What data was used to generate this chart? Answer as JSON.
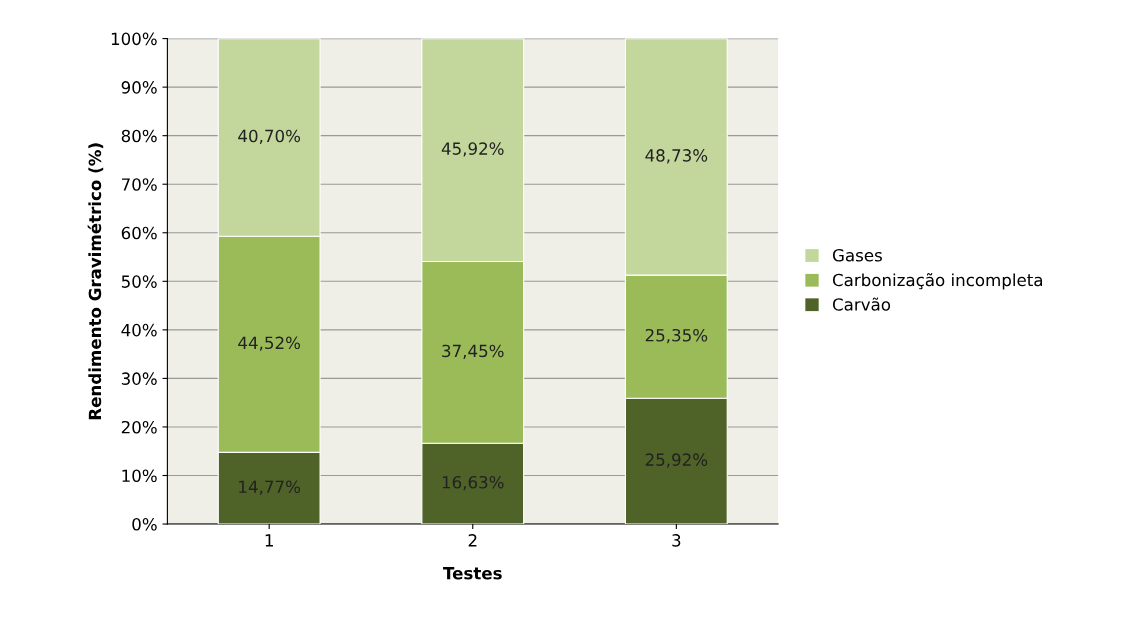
{
  "chart_data": {
    "type": "bar",
    "stacked": true,
    "xlabel": "Testes",
    "ylabel": "Rendimento Gravimétrico (%)",
    "categories": [
      "1",
      "2",
      "3"
    ],
    "series": [
      {
        "name": "Carvão",
        "color": "#4f6228",
        "values": [
          14.77,
          16.63,
          25.92
        ],
        "value_labels": [
          "14,77%",
          "16,63%",
          "25,92%"
        ]
      },
      {
        "name": "Carbonização incompleta",
        "color": "#9bbb59",
        "values": [
          44.52,
          37.45,
          25.35
        ],
        "value_labels": [
          "44,52%",
          "37,45%",
          "25,35%"
        ]
      },
      {
        "name": "Gases",
        "color": "#c3d69b",
        "values": [
          40.7,
          45.92,
          48.73
        ],
        "value_labels": [
          "40,70%",
          "45,92%",
          "48,73%"
        ]
      }
    ],
    "ylim": [
      0,
      100
    ],
    "yticks": [
      {
        "value": 0,
        "label": "0%"
      },
      {
        "value": 10,
        "label": "10%"
      },
      {
        "value": 20,
        "label": "20%"
      },
      {
        "value": 30,
        "label": "30%"
      },
      {
        "value": 40,
        "label": "40%"
      },
      {
        "value": 50,
        "label": "50%"
      },
      {
        "value": 60,
        "label": "60%"
      },
      {
        "value": 70,
        "label": "70%"
      },
      {
        "value": 80,
        "label": "80%"
      },
      {
        "value": 90,
        "label": "90%"
      },
      {
        "value": 100,
        "label": "100%"
      }
    ],
    "grid": "y",
    "legend": "right"
  }
}
